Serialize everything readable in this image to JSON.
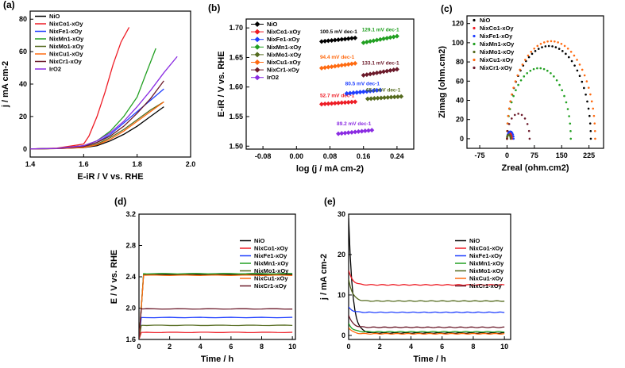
{
  "figure": {
    "panel_labels": [
      "(a)",
      "(b)",
      "(c)",
      "(d)",
      "(e)"
    ]
  },
  "chart_data": [
    {
      "panel": "(a)",
      "type": "line",
      "xlabel": "E-iR / V vs. RHE",
      "ylabel": "j / mA cm-2",
      "xlim": [
        1.4,
        2.0
      ],
      "ylim": [
        -5,
        85
      ],
      "xticks": [
        "1.4",
        "1.6",
        "1.8",
        "2.0"
      ],
      "yticks": [
        "0",
        "20",
        "40",
        "60",
        "80"
      ],
      "legend_position": "top-left",
      "series": [
        {
          "name": "NiO",
          "color": "#000000",
          "x": [
            1.4,
            1.5,
            1.6,
            1.65,
            1.7,
            1.75,
            1.8,
            1.85,
            1.9
          ],
          "y": [
            0,
            0.2,
            0.8,
            2,
            5,
            9,
            14,
            20,
            26
          ]
        },
        {
          "name": "NixCo1-xOy",
          "color": "#ee1c25",
          "x": [
            1.4,
            1.5,
            1.6,
            1.62,
            1.65,
            1.68,
            1.71,
            1.74,
            1.77
          ],
          "y": [
            0,
            0.5,
            3,
            8,
            20,
            35,
            52,
            66,
            75
          ]
        },
        {
          "name": "NixFe1-xOy",
          "color": "#1f3fff",
          "x": [
            1.4,
            1.5,
            1.6,
            1.65,
            1.7,
            1.75,
            1.8,
            1.85,
            1.9
          ],
          "y": [
            0,
            0.3,
            1.5,
            4,
            9,
            16,
            23,
            30,
            37
          ]
        },
        {
          "name": "NixMn1-xOy",
          "color": "#22a022",
          "x": [
            1.4,
            1.5,
            1.6,
            1.65,
            1.7,
            1.75,
            1.8,
            1.83,
            1.87
          ],
          "y": [
            0,
            0.3,
            2,
            5,
            11,
            20,
            32,
            45,
            62
          ]
        },
        {
          "name": "NixMo1-xOy",
          "color": "#556b1f",
          "x": [
            1.4,
            1.5,
            1.6,
            1.65,
            1.7,
            1.75,
            1.8,
            1.85,
            1.9
          ],
          "y": [
            0,
            0.3,
            1,
            3,
            7,
            12,
            18,
            24,
            29
          ]
        },
        {
          "name": "NixCu1-xOy",
          "color": "#ff6a10",
          "x": [
            1.4,
            1.5,
            1.6,
            1.65,
            1.7,
            1.75,
            1.8,
            1.85,
            1.9
          ],
          "y": [
            0,
            0.2,
            0.9,
            2.5,
            6,
            11,
            17,
            23,
            29
          ]
        },
        {
          "name": "NixCr1-xOy",
          "color": "#6b1a2a",
          "x": [
            1.4,
            1.5,
            1.6,
            1.65,
            1.7,
            1.75,
            1.8,
            1.85,
            1.9
          ],
          "y": [
            0,
            0.3,
            1.5,
            4,
            8,
            14,
            22,
            31,
            42
          ]
        },
        {
          "name": "IrO2",
          "color": "#8a2be2",
          "x": [
            1.4,
            1.5,
            1.6,
            1.65,
            1.7,
            1.75,
            1.8,
            1.85,
            1.9,
            1.95
          ],
          "y": [
            0,
            0.3,
            2,
            5,
            10,
            17,
            26,
            36,
            47,
            57
          ]
        }
      ]
    },
    {
      "panel": "(b)",
      "type": "scatter",
      "xlabel": "log (j / mA cm-2)",
      "ylabel": "E-iR / V vs. RHE",
      "xlim": [
        -0.12,
        0.28
      ],
      "ylim": [
        1.495,
        1.715
      ],
      "xticks": [
        "-0.08",
        "0.00",
        "0.08",
        "0.16",
        "0.24"
      ],
      "yticks": [
        "1.50",
        "1.55",
        "1.60",
        "1.65",
        "1.70"
      ],
      "legend_position": "top-left",
      "series": [
        {
          "name": "NiO",
          "color": "#000000",
          "x_range": [
            0.06,
            0.14
          ],
          "y_range": [
            1.677,
            1.683
          ],
          "annotation": "100.5 mV dec-1"
        },
        {
          "name": "NixCo1-xOy",
          "color": "#ee1c25",
          "x_range": [
            0.06,
            0.14
          ],
          "y_range": [
            1.571,
            1.575
          ],
          "annotation": "52.7 mV dec-1"
        },
        {
          "name": "NixFe1-xOy",
          "color": "#1f3fff",
          "x_range": [
            0.12,
            0.2
          ],
          "y_range": [
            1.589,
            1.595
          ],
          "annotation": "80.5 mV dec-1"
        },
        {
          "name": "NixMn1-xOy",
          "color": "#22a022",
          "x_range": [
            0.16,
            0.24
          ],
          "y_range": [
            1.675,
            1.686
          ],
          "annotation": "129.1 mV dec-1"
        },
        {
          "name": "NixMo1-xOy",
          "color": "#556b1f",
          "x_range": [
            0.17,
            0.25
          ],
          "y_range": [
            1.58,
            1.584
          ],
          "annotation": "65.1 mV dec-1"
        },
        {
          "name": "NixCu1-xOy",
          "color": "#ff6a10",
          "x_range": [
            0.06,
            0.14
          ],
          "y_range": [
            1.632,
            1.64
          ],
          "annotation": "94.4 mV dec-1"
        },
        {
          "name": "NixCr1-xOy",
          "color": "#6b1a2a",
          "x_range": [
            0.16,
            0.24
          ],
          "y_range": [
            1.62,
            1.63
          ],
          "annotation": "133.1 mV dec-1"
        },
        {
          "name": "IrO2",
          "color": "#8a2be2",
          "x_range": [
            0.1,
            0.18
          ],
          "y_range": [
            1.521,
            1.527
          ],
          "annotation": "89.2 mV dec-1"
        }
      ]
    },
    {
      "panel": "(c)",
      "type": "scatter",
      "xlabel": "Zreal (ohm.cm2)",
      "ylabel": "Zimag (ohm.cm2)",
      "xlim": [
        -110,
        265
      ],
      "ylim": [
        -10,
        128
      ],
      "xticks": [
        "-75",
        "0",
        "75",
        "150",
        "225"
      ],
      "yticks": [
        "0",
        "20",
        "40",
        "60",
        "80",
        "100",
        "120"
      ],
      "legend_position": "top-left",
      "series": [
        {
          "name": "NiO",
          "color": "#000000",
          "diameter": 230
        },
        {
          "name": "NixCo1-xOy",
          "color": "#ee1c25",
          "diameter": 14
        },
        {
          "name": "NixFe1-xOy",
          "color": "#1f3fff",
          "diameter": 18
        },
        {
          "name": "NixMn1-xOy",
          "color": "#22a022",
          "diameter": 175
        },
        {
          "name": "NixMo1-xOy",
          "color": "#556b1f",
          "diameter": 10
        },
        {
          "name": "NixCu1-xOy",
          "color": "#ff6a10",
          "diameter": 242
        },
        {
          "name": "NixCr1-xOy",
          "color": "#6b1a2a",
          "diameter": 62
        }
      ]
    },
    {
      "panel": "(d)",
      "type": "line",
      "xlabel": "Time / h",
      "ylabel": "E / V vs. RHE",
      "xlim": [
        0,
        10.2
      ],
      "ylim": [
        1.6,
        3.2
      ],
      "xticks": [
        "0",
        "2",
        "4",
        "6",
        "8",
        "10"
      ],
      "yticks": [
        "1.6",
        "2.0",
        "2.4",
        "2.8",
        "3.2"
      ],
      "legend_position": "top-right",
      "series": [
        {
          "name": "NiO",
          "color": "#000000",
          "level": 2.43
        },
        {
          "name": "NixCo1-xOy",
          "color": "#ee1c25",
          "level": 1.69
        },
        {
          "name": "NixFe1-xOy",
          "color": "#1f3fff",
          "level": 1.88
        },
        {
          "name": "NixMn1-xOy",
          "color": "#22a022",
          "level": 2.44
        },
        {
          "name": "NixMo1-xOy",
          "color": "#556b1f",
          "level": 1.78
        },
        {
          "name": "NixCu1-xOy",
          "color": "#ff6a10",
          "level": 2.42
        },
        {
          "name": "NixCr1-xOy",
          "color": "#6b1a2a",
          "level": 1.99
        }
      ]
    },
    {
      "panel": "(e)",
      "type": "line",
      "xlabel": "Time / h",
      "ylabel": "j / mA cm-2",
      "xlim": [
        0,
        10.4
      ],
      "ylim": [
        -1,
        30
      ],
      "xticks": [
        "0",
        "2",
        "4",
        "6",
        "8",
        "10"
      ],
      "yticks": [
        "0",
        "10",
        "20",
        "30"
      ],
      "legend_position": "top-right",
      "series": [
        {
          "name": "NiO",
          "color": "#000000",
          "start": 29,
          "level": 0.6
        },
        {
          "name": "NixCo1-xOy",
          "color": "#ee1c25",
          "start": 16,
          "level": 12.5
        },
        {
          "name": "NixFe1-xOy",
          "color": "#1f3fff",
          "start": 7,
          "level": 5.7
        },
        {
          "name": "NixMn1-xOy",
          "color": "#22a022",
          "start": 3,
          "level": 0.9
        },
        {
          "name": "NixMo1-xOy",
          "color": "#556b1f",
          "start": 14,
          "level": 8.5
        },
        {
          "name": "NixCu1-xOy",
          "color": "#ff6a10",
          "start": 2,
          "level": 0.4
        },
        {
          "name": "NixCr1-xOy",
          "color": "#6b1a2a",
          "start": 5,
          "level": 2.0
        }
      ]
    }
  ]
}
